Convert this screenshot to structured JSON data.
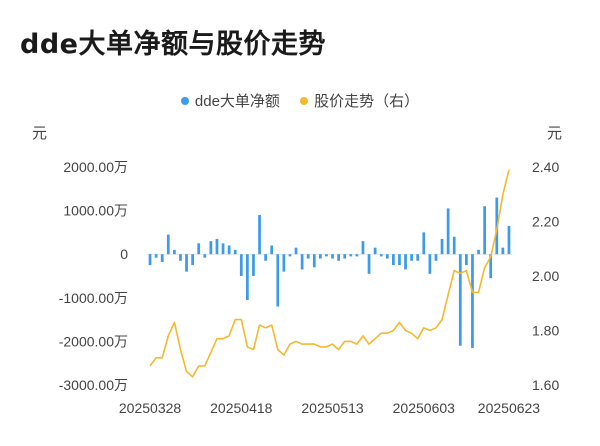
{
  "page": {
    "title": "dde大单净额与股价走势"
  },
  "chart_data": {
    "type": "bar+line",
    "title": "dde大单净额与股价走势",
    "left_axis_unit": "元",
    "right_axis_unit": "元",
    "y_left": {
      "ticks": [
        "2000.00万",
        "1000.00万",
        "0",
        "-1000.00万",
        "-2000.00万",
        "-3000.00万"
      ],
      "range": [
        -3000,
        2000
      ],
      "unit_scale": "万"
    },
    "y_right": {
      "ticks": [
        "2.40",
        "2.20",
        "2.00",
        "1.80",
        "1.60"
      ],
      "range": [
        1.6,
        2.4
      ]
    },
    "x_tick_labels": [
      "20250328",
      "20250418",
      "20250513",
      "20250603",
      "20250623"
    ],
    "x_tick_index": [
      0,
      15,
      30,
      45,
      59
    ],
    "legend": [
      {
        "name": "dde大单净额",
        "color": "#3d9be9"
      },
      {
        "name": "股价走势（右）",
        "color": "#f5b82e"
      }
    ],
    "series": [
      {
        "name": "dde大单净额",
        "type": "bar",
        "axis": "left",
        "color": "#3d9be9",
        "values": [
          -250,
          -80,
          -180,
          450,
          100,
          -150,
          -400,
          -250,
          250,
          -80,
          300,
          350,
          250,
          200,
          100,
          -500,
          -1050,
          -500,
          900,
          -150,
          200,
          -1200,
          -400,
          -50,
          150,
          -350,
          -100,
          -300,
          -100,
          -50,
          -100,
          -150,
          -100,
          -50,
          -50,
          300,
          -450,
          150,
          -50,
          -100,
          -250,
          -250,
          -350,
          -150,
          -150,
          500,
          -450,
          -150,
          350,
          1050,
          400,
          -2100,
          -250,
          -2150,
          100,
          1100,
          -550,
          1300,
          150,
          650
        ]
      },
      {
        "name": "股价走势（右）",
        "type": "line",
        "axis": "right",
        "color": "#f5b82e",
        "values": [
          1.67,
          1.7,
          1.7,
          1.78,
          1.83,
          1.73,
          1.65,
          1.63,
          1.67,
          1.67,
          1.72,
          1.77,
          1.77,
          1.78,
          1.84,
          1.84,
          1.74,
          1.73,
          1.82,
          1.81,
          1.82,
          1.73,
          1.71,
          1.75,
          1.76,
          1.75,
          1.75,
          1.75,
          1.74,
          1.74,
          1.75,
          1.73,
          1.76,
          1.76,
          1.75,
          1.78,
          1.75,
          1.77,
          1.79,
          1.79,
          1.8,
          1.83,
          1.8,
          1.79,
          1.77,
          1.81,
          1.8,
          1.81,
          1.84,
          1.93,
          2.02,
          2.01,
          2.02,
          1.94,
          1.94,
          2.03,
          2.07,
          2.17,
          2.3,
          2.39
        ]
      }
    ]
  }
}
